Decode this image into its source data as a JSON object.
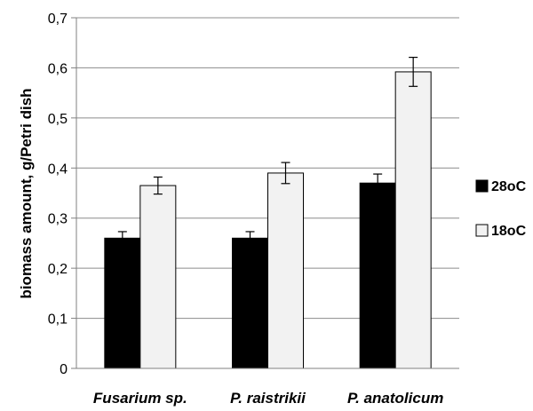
{
  "chart_data": {
    "type": "bar",
    "categories": [
      "Fusarium sp.",
      "P. raistrikii",
      "P. anatolicum"
    ],
    "series": [
      {
        "name": "28oC",
        "values": [
          0.26,
          0.26,
          0.37
        ],
        "errors": [
          0.013,
          0.013,
          0.018
        ],
        "color": "#000000"
      },
      {
        "name": "18oC",
        "values": [
          0.365,
          0.39,
          0.592
        ],
        "errors": [
          0.017,
          0.021,
          0.029
        ],
        "color": "#f2f2f2"
      }
    ],
    "ylabel": "biomass amount, g/Petri dish",
    "ylim": [
      0,
      0.7
    ],
    "yticks": [
      "0",
      "0,1",
      "0,2",
      "0,3",
      "0,4",
      "0,5",
      "0,6",
      "0,7"
    ],
    "grid": true,
    "legend_position": "right"
  }
}
